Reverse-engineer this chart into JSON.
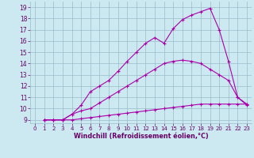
{
  "bg_color": "#cce8f0",
  "line_color": "#aa00aa",
  "grid_color": "#99bbcc",
  "xlabel": "Windchill (Refroidissement éolien,°C)",
  "xlabel_color": "#660066",
  "tick_color": "#660066",
  "ylim": [
    8.7,
    19.5
  ],
  "xlim": [
    -0.5,
    23.5
  ],
  "yticks": [
    9,
    10,
    11,
    12,
    13,
    14,
    15,
    16,
    17,
    18,
    19
  ],
  "xticks": [
    0,
    1,
    2,
    3,
    4,
    5,
    6,
    7,
    8,
    9,
    10,
    11,
    12,
    13,
    14,
    15,
    16,
    17,
    18,
    19,
    20,
    21,
    22,
    23
  ],
  "curve_flat_x": [
    1,
    2,
    3,
    4,
    5,
    6,
    7,
    8,
    9,
    10,
    11,
    12,
    13,
    14,
    15,
    16,
    17,
    18,
    19,
    20,
    21,
    22,
    23
  ],
  "curve_flat_y": [
    9.0,
    9.0,
    9.0,
    9.0,
    9.1,
    9.2,
    9.3,
    9.4,
    9.5,
    9.6,
    9.7,
    9.8,
    9.9,
    10.0,
    10.1,
    10.2,
    10.3,
    10.4,
    10.4,
    10.4,
    10.4,
    10.4,
    10.4
  ],
  "curve_mid_x": [
    1,
    2,
    3,
    4,
    5,
    6,
    7,
    8,
    9,
    10,
    11,
    12,
    13,
    14,
    15,
    16,
    17,
    18,
    19,
    20,
    21,
    22,
    23
  ],
  "curve_mid_y": [
    9.0,
    9.0,
    9.0,
    9.5,
    9.8,
    10.0,
    10.5,
    11.0,
    11.5,
    12.0,
    12.5,
    13.0,
    13.5,
    14.0,
    14.2,
    14.3,
    14.2,
    14.0,
    13.5,
    13.0,
    12.5,
    11.0,
    10.3
  ],
  "curve_top_x": [
    1,
    2,
    3,
    4,
    5,
    6,
    7,
    8,
    9,
    10,
    11,
    12,
    13,
    14,
    15,
    16,
    17,
    18,
    19,
    20,
    21,
    22,
    23
  ],
  "curve_top_y": [
    9.0,
    9.0,
    9.0,
    9.5,
    10.3,
    11.5,
    12.0,
    12.5,
    13.3,
    14.2,
    15.0,
    15.8,
    16.3,
    15.8,
    17.1,
    17.9,
    18.3,
    18.6,
    18.9,
    17.0,
    14.2,
    11.0,
    10.4
  ],
  "marker": "+",
  "markersize": 3,
  "linewidth": 0.8
}
